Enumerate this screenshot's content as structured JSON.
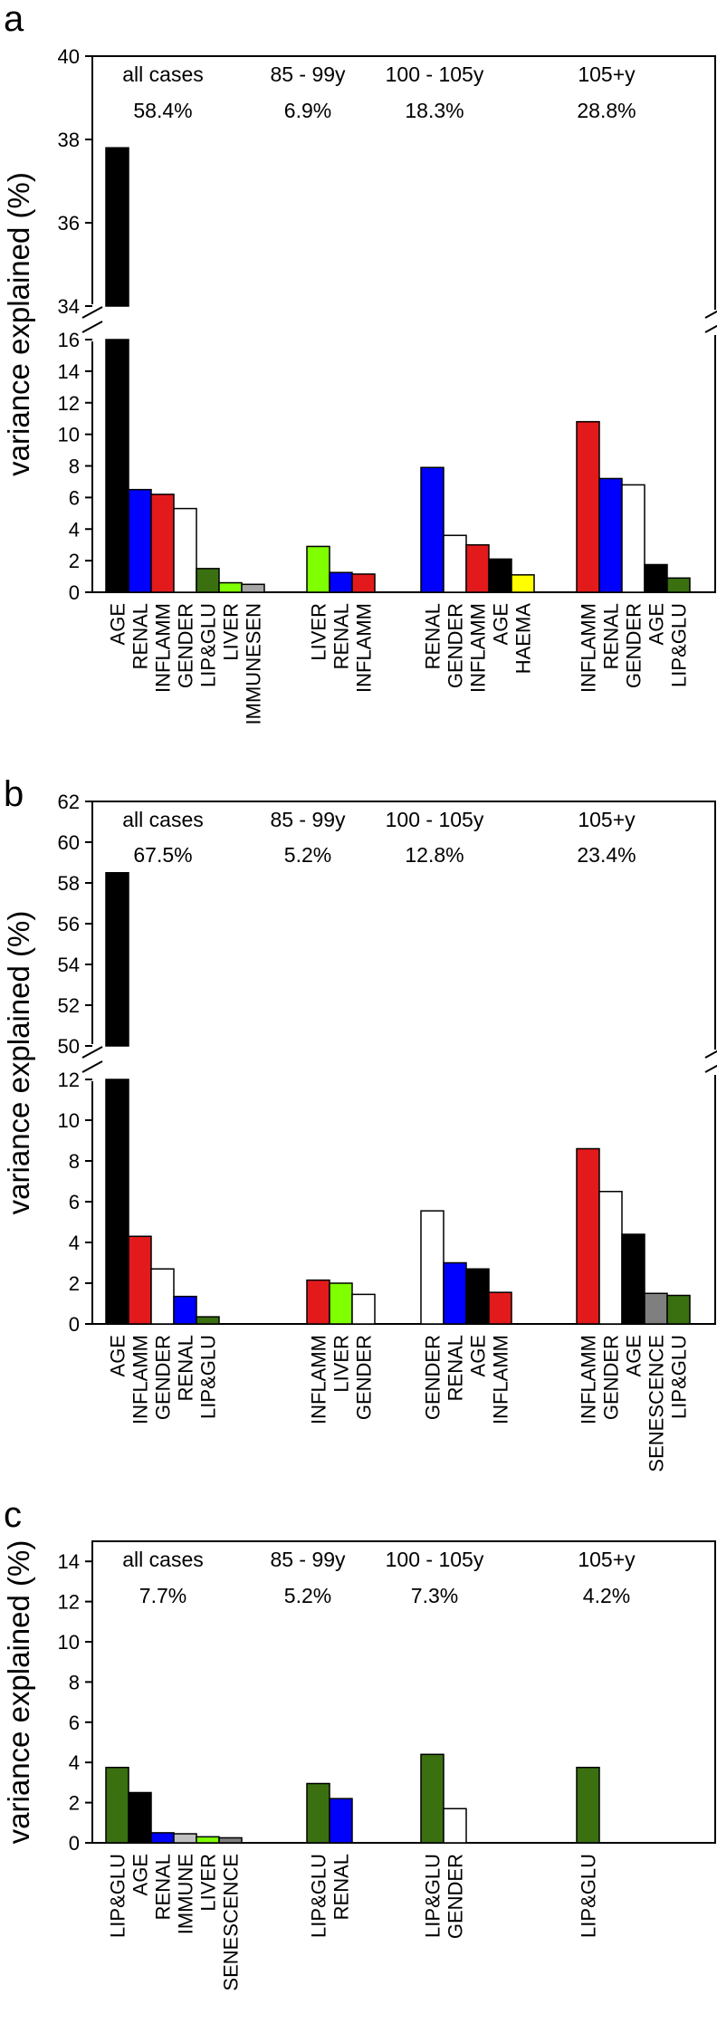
{
  "figure": {
    "ylabel": "variance explained (%)"
  },
  "chart_data": [
    {
      "type": "bar",
      "panel_label": "a",
      "ylabel": "variance explained (%)",
      "broken_axis": true,
      "ylim_lower": [
        0,
        16
      ],
      "ylim_upper": [
        34,
        40
      ],
      "yticks_lower": [
        "0",
        "2",
        "4",
        "6",
        "8",
        "10",
        "12",
        "14",
        "16"
      ],
      "yticks_upper": [
        "34",
        "36",
        "38",
        "40"
      ],
      "groups": [
        {
          "name": "all cases",
          "total": "58.4%",
          "bars": [
            {
              "label": "AGE",
              "value": 37.8,
              "color": "#000000"
            },
            {
              "label": "RENAL",
              "value": 6.5,
              "color": "#0000ff"
            },
            {
              "label": "INFLAMM",
              "value": 6.2,
              "color": "#e31a1c"
            },
            {
              "label": "GENDER",
              "value": 5.3,
              "color": "#ffffff"
            },
            {
              "label": "LIP&GLU",
              "value": 1.5,
              "color": "#3a7010"
            },
            {
              "label": "LIVER",
              "value": 0.6,
              "color": "#7fff00"
            },
            {
              "label": "IMMUNESEN",
              "value": 0.5,
              "color": "#a6a6a6"
            }
          ]
        },
        {
          "name": "85 - 99y",
          "total": "6.9%",
          "bars": [
            {
              "label": "LIVER",
              "value": 2.9,
              "color": "#7fff00"
            },
            {
              "label": "RENAL",
              "value": 1.25,
              "color": "#0000ff"
            },
            {
              "label": "INFLAMM",
              "value": 1.15,
              "color": "#e31a1c"
            }
          ]
        },
        {
          "name": "100 - 105y",
          "total": "18.3%",
          "bars": [
            {
              "label": "RENAL",
              "value": 7.9,
              "color": "#0000ff"
            },
            {
              "label": "GENDER",
              "value": 3.6,
              "color": "#ffffff"
            },
            {
              "label": "INFLAMM",
              "value": 3.0,
              "color": "#e31a1c"
            },
            {
              "label": "AGE",
              "value": 2.1,
              "color": "#000000"
            },
            {
              "label": "HAEMA",
              "value": 1.1,
              "color": "#ffff00"
            }
          ]
        },
        {
          "name": "105+y",
          "total": "28.8%",
          "bars": [
            {
              "label": "INFLAMM",
              "value": 10.8,
              "color": "#e31a1c"
            },
            {
              "label": "RENAL",
              "value": 7.2,
              "color": "#0000ff"
            },
            {
              "label": "GENDER",
              "value": 6.8,
              "color": "#ffffff"
            },
            {
              "label": "AGE",
              "value": 1.75,
              "color": "#000000"
            },
            {
              "label": "LIP&GLU",
              "value": 0.9,
              "color": "#3a7010"
            }
          ]
        }
      ]
    },
    {
      "type": "bar",
      "panel_label": "b",
      "ylabel": "variance explained (%)",
      "broken_axis": true,
      "ylim_lower": [
        0,
        12
      ],
      "ylim_upper": [
        50,
        62
      ],
      "yticks_lower": [
        "0",
        "2",
        "4",
        "6",
        "8",
        "10",
        "12"
      ],
      "yticks_upper": [
        "50",
        "52",
        "54",
        "56",
        "58",
        "60",
        "62"
      ],
      "groups": [
        {
          "name": "all cases",
          "total": "67.5%",
          "bars": [
            {
              "label": "AGE",
              "value": 58.5,
              "color": "#000000"
            },
            {
              "label": "INFLAMM",
              "value": 4.3,
              "color": "#e31a1c"
            },
            {
              "label": "GENDER",
              "value": 2.7,
              "color": "#ffffff"
            },
            {
              "label": "RENAL",
              "value": 1.35,
              "color": "#0000ff"
            },
            {
              "label": "LIP&GLU",
              "value": 0.35,
              "color": "#3a7010"
            }
          ]
        },
        {
          "name": "85 - 99y",
          "total": "5.2%",
          "bars": [
            {
              "label": "INFLAMM",
              "value": 2.15,
              "color": "#e31a1c"
            },
            {
              "label": "LIVER",
              "value": 2.0,
              "color": "#7fff00"
            },
            {
              "label": "GENDER",
              "value": 1.45,
              "color": "#ffffff"
            }
          ]
        },
        {
          "name": "100 - 105y",
          "total": "12.8%",
          "bars": [
            {
              "label": "GENDER",
              "value": 5.55,
              "color": "#ffffff"
            },
            {
              "label": "RENAL",
              "value": 3.0,
              "color": "#0000ff"
            },
            {
              "label": "AGE",
              "value": 2.7,
              "color": "#000000"
            },
            {
              "label": "INFLAMM",
              "value": 1.55,
              "color": "#e31a1c"
            }
          ]
        },
        {
          "name": "105+y",
          "total": "23.4%",
          "bars": [
            {
              "label": "INFLAMM",
              "value": 8.6,
              "color": "#e31a1c"
            },
            {
              "label": "GENDER",
              "value": 6.5,
              "color": "#ffffff"
            },
            {
              "label": "AGE",
              "value": 4.4,
              "color": "#000000"
            },
            {
              "label": "SENESCENCE",
              "value": 1.5,
              "color": "#7f7f7f"
            },
            {
              "label": "LIP&GLU",
              "value": 1.4,
              "color": "#3a7010"
            }
          ]
        }
      ]
    },
    {
      "type": "bar",
      "panel_label": "c",
      "ylabel": "variance explained (%)",
      "broken_axis": false,
      "ylim_lower": [
        0,
        15
      ],
      "yticks_lower": [
        "0",
        "2",
        "4",
        "6",
        "8",
        "10",
        "12",
        "14"
      ],
      "groups": [
        {
          "name": "all cases",
          "total": "7.7%",
          "bars": [
            {
              "label": "LIP&GLU",
              "value": 3.75,
              "color": "#3a7010"
            },
            {
              "label": "AGE",
              "value": 2.5,
              "color": "#000000"
            },
            {
              "label": "RENAL",
              "value": 0.5,
              "color": "#0000ff"
            },
            {
              "label": "IMMUNE",
              "value": 0.45,
              "color": "#c0c0c0"
            },
            {
              "label": "LIVER",
              "value": 0.3,
              "color": "#7fff00"
            },
            {
              "label": "SENESCENCE",
              "value": 0.25,
              "color": "#7f7f7f"
            }
          ]
        },
        {
          "name": "85 - 99y",
          "total": "5.2%",
          "bars": [
            {
              "label": "LIP&GLU",
              "value": 2.95,
              "color": "#3a7010"
            },
            {
              "label": "RENAL",
              "value": 2.2,
              "color": "#0000ff"
            }
          ]
        },
        {
          "name": "100 - 105y",
          "total": "7.3%",
          "bars": [
            {
              "label": "LIP&GLU",
              "value": 4.4,
              "color": "#3a7010"
            },
            {
              "label": "GENDER",
              "value": 1.7,
              "color": "#ffffff"
            }
          ]
        },
        {
          "name": "105+y",
          "total": "4.2%",
          "bars": [
            {
              "label": "LIP&GLU",
              "value": 3.75,
              "color": "#3a7010"
            }
          ]
        }
      ]
    }
  ]
}
